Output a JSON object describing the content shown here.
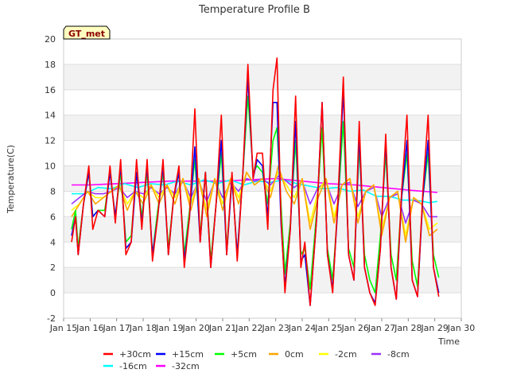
{
  "chart_data": {
    "type": "line",
    "title": "Temperature Profile B",
    "xlabel": "Time",
    "ylabel": "Temperature(C)",
    "xlim": [
      "Jan 15",
      "Jan 30"
    ],
    "ylim": [
      -2,
      20
    ],
    "yticks": [
      -2,
      0,
      2,
      4,
      6,
      8,
      10,
      12,
      14,
      16,
      18,
      20
    ],
    "xtick_labels": [
      "Jan 15",
      "Jan 16",
      "Jan 17",
      "Jan 18",
      "Jan 19",
      "Jan 20",
      "Jan 21",
      "Jan 22",
      "Jan 23",
      "Jan 24",
      "Jan 25",
      "Jan 26",
      "Jan 27",
      "Jan 28",
      "Jan 29",
      "Jan 30"
    ],
    "grid": "horizontal bands",
    "legend_position": "bottom",
    "annotation": "GT_met",
    "series": [
      {
        "name": "+30cm",
        "color": "#ff0000",
        "x": [
          15.3,
          15.45,
          15.55,
          15.75,
          15.95,
          16.1,
          16.3,
          16.55,
          16.75,
          16.95,
          17.15,
          17.35,
          17.55,
          17.75,
          17.95,
          18.15,
          18.35,
          18.55,
          18.75,
          18.95,
          19.15,
          19.35,
          19.55,
          19.75,
          19.95,
          20.15,
          20.35,
          20.55,
          20.75,
          20.95,
          21.15,
          21.35,
          21.55,
          21.75,
          21.95,
          22.15,
          22.3,
          22.5,
          22.7,
          22.9,
          23.05,
          23.2,
          23.35,
          23.55,
          23.75,
          23.95,
          24.1,
          24.3,
          24.55,
          24.75,
          24.95,
          25.15,
          25.35,
          25.55,
          25.75,
          25.95,
          26.15,
          26.35,
          26.55,
          26.75,
          26.95,
          27.15,
          27.35,
          27.55,
          27.75,
          27.95,
          28.15,
          28.35,
          28.55,
          28.75,
          28.95,
          29.15
        ],
        "y": [
          4.0,
          6.0,
          3.0,
          7.0,
          10.0,
          5.0,
          6.5,
          6.0,
          10.0,
          5.5,
          10.5,
          3.0,
          4.0,
          10.5,
          5.0,
          10.5,
          2.5,
          6.0,
          10.5,
          3.0,
          7.5,
          10.0,
          2.0,
          6.0,
          14.5,
          4.0,
          9.5,
          2.0,
          7.0,
          14.0,
          3.0,
          9.5,
          2.5,
          9.0,
          18.0,
          9.0,
          11.0,
          11.0,
          5.0,
          16.0,
          18.5,
          6.0,
          0.0,
          5.0,
          15.5,
          2.0,
          4.0,
          -1.0,
          6.0,
          15.0,
          3.0,
          0.0,
          7.5,
          17.0,
          3.0,
          1.0,
          13.5,
          2.0,
          0.0,
          -1.0,
          3.5,
          12.5,
          2.0,
          -0.5,
          8.0,
          14.0,
          1.0,
          -0.3,
          8.0,
          14.0,
          2.0,
          -0.3
        ]
      },
      {
        "name": "+15cm",
        "color": "#0000ff",
        "x": [
          15.3,
          15.45,
          15.55,
          15.75,
          15.95,
          16.1,
          16.3,
          16.55,
          16.75,
          16.95,
          17.15,
          17.35,
          17.55,
          17.75,
          17.95,
          18.15,
          18.35,
          18.55,
          18.75,
          18.95,
          19.15,
          19.35,
          19.55,
          19.75,
          19.95,
          20.15,
          20.35,
          20.55,
          20.75,
          20.95,
          21.15,
          21.35,
          21.55,
          21.75,
          21.95,
          22.15,
          22.3,
          22.5,
          22.7,
          22.9,
          23.05,
          23.2,
          23.35,
          23.55,
          23.75,
          23.95,
          24.1,
          24.3,
          24.55,
          24.75,
          24.95,
          25.15,
          25.35,
          25.55,
          25.75,
          25.95,
          26.15,
          26.35,
          26.55,
          26.75,
          26.95,
          27.15,
          27.35,
          27.55,
          27.75,
          27.95,
          28.15,
          28.35,
          28.55,
          28.75,
          28.95,
          29.15
        ],
        "y": [
          4.5,
          6.0,
          3.0,
          7.0,
          9.5,
          6.0,
          6.5,
          6.0,
          9.5,
          6.0,
          10.0,
          3.5,
          4.0,
          9.5,
          5.5,
          10.0,
          3.0,
          6.0,
          10.0,
          3.0,
          7.5,
          9.5,
          2.5,
          6.0,
          11.5,
          4.0,
          9.5,
          2.0,
          7.0,
          12.0,
          3.0,
          9.0,
          3.0,
          9.0,
          17.0,
          9.0,
          10.5,
          10.0,
          6.0,
          15.0,
          15.0,
          5.5,
          0.5,
          5.0,
          13.5,
          2.5,
          3.0,
          -1.0,
          6.0,
          15.0,
          3.0,
          0.3,
          7.0,
          16.0,
          3.0,
          1.0,
          12.5,
          2.0,
          0.0,
          -0.8,
          3.5,
          12.0,
          2.0,
          -0.5,
          7.5,
          12.0,
          1.0,
          -0.3,
          7.5,
          12.0,
          2.0,
          0.0
        ]
      },
      {
        "name": "+5cm",
        "color": "#00ff00",
        "x": [
          15.3,
          15.45,
          15.55,
          15.75,
          15.95,
          16.1,
          16.3,
          16.55,
          16.75,
          16.95,
          17.15,
          17.35,
          17.55,
          17.75,
          17.95,
          18.15,
          18.35,
          18.55,
          18.75,
          18.95,
          19.15,
          19.35,
          19.55,
          19.75,
          19.95,
          20.15,
          20.35,
          20.55,
          20.75,
          20.95,
          21.15,
          21.35,
          21.55,
          21.75,
          21.95,
          22.15,
          22.3,
          22.5,
          22.7,
          22.9,
          23.05,
          23.2,
          23.35,
          23.55,
          23.75,
          23.95,
          24.1,
          24.3,
          24.55,
          24.75,
          24.95,
          25.15,
          25.35,
          25.55,
          25.75,
          25.95,
          26.15,
          26.35,
          26.55,
          26.75,
          26.95,
          27.15,
          27.35,
          27.55,
          27.75,
          27.95,
          28.15,
          28.35,
          28.55,
          28.75,
          28.95,
          29.15
        ],
        "y": [
          5.0,
          6.5,
          3.5,
          7.0,
          9.5,
          6.0,
          6.5,
          6.5,
          9.5,
          6.0,
          9.5,
          4.0,
          4.5,
          9.5,
          6.0,
          9.5,
          3.0,
          6.5,
          9.5,
          3.5,
          7.5,
          9.5,
          3.0,
          6.5,
          10.5,
          4.5,
          9.5,
          2.5,
          7.0,
          11.0,
          3.5,
          9.0,
          3.0,
          9.0,
          15.5,
          9.5,
          10.0,
          9.5,
          7.0,
          12.0,
          13.0,
          7.0,
          1.5,
          5.5,
          12.0,
          3.0,
          3.5,
          0.3,
          6.5,
          13.0,
          3.5,
          1.0,
          7.0,
          13.5,
          3.5,
          2.0,
          11.5,
          3.0,
          1.0,
          0.0,
          4.5,
          11.0,
          3.0,
          1.0,
          7.5,
          11.0,
          2.5,
          0.5,
          7.5,
          11.0,
          3.0,
          1.2
        ]
      },
      {
        "name": "0cm",
        "color": "#ffa500",
        "x": [
          15.3,
          15.6,
          15.9,
          16.2,
          16.5,
          16.8,
          17.1,
          17.4,
          17.7,
          18.0,
          18.3,
          18.6,
          18.9,
          19.2,
          19.5,
          19.8,
          20.1,
          20.4,
          20.7,
          21.0,
          21.3,
          21.6,
          21.9,
          22.2,
          22.5,
          22.8,
          23.1,
          23.4,
          23.7,
          24.0,
          24.3,
          24.6,
          24.9,
          25.2,
          25.5,
          25.8,
          26.1,
          26.4,
          26.7,
          27.0,
          27.3,
          27.6,
          27.9,
          28.2,
          28.5,
          28.8,
          29.1
        ],
        "y": [
          6.0,
          7.0,
          8.0,
          7.0,
          7.5,
          8.0,
          8.5,
          6.5,
          8.0,
          7.0,
          8.5,
          7.0,
          8.5,
          7.0,
          9.0,
          6.5,
          9.0,
          6.0,
          9.0,
          6.5,
          9.0,
          7.0,
          9.5,
          8.5,
          9.0,
          7.5,
          10.0,
          8.0,
          7.0,
          9.0,
          5.0,
          7.5,
          9.0,
          5.5,
          8.5,
          9.0,
          5.5,
          8.0,
          8.5,
          4.5,
          7.5,
          8.0,
          4.0,
          7.5,
          7.0,
          4.5,
          5.0
        ]
      },
      {
        "name": "-2cm",
        "color": "#ffff00",
        "x": [
          15.3,
          15.6,
          15.9,
          16.2,
          16.5,
          16.8,
          17.1,
          17.4,
          17.7,
          18.0,
          18.3,
          18.6,
          18.9,
          19.2,
          19.5,
          19.8,
          20.1,
          20.4,
          20.7,
          21.0,
          21.3,
          21.6,
          21.9,
          22.2,
          22.5,
          22.8,
          23.1,
          23.4,
          23.7,
          24.0,
          24.3,
          24.6,
          24.9,
          25.2,
          25.5,
          25.8,
          26.1,
          26.4,
          26.7,
          27.0,
          27.3,
          27.6,
          27.9,
          28.2,
          28.5,
          28.8,
          29.1
        ],
        "y": [
          6.5,
          7.0,
          8.0,
          7.5,
          7.5,
          8.0,
          8.5,
          7.0,
          8.0,
          7.5,
          8.5,
          7.5,
          8.5,
          7.5,
          9.0,
          7.0,
          9.0,
          6.5,
          9.0,
          7.0,
          9.0,
          7.5,
          9.5,
          8.5,
          9.0,
          8.0,
          9.5,
          8.5,
          7.5,
          9.0,
          5.5,
          8.0,
          9.0,
          6.0,
          8.5,
          9.0,
          6.0,
          8.0,
          8.5,
          5.0,
          7.5,
          8.0,
          4.5,
          7.5,
          7.0,
          5.0,
          5.5
        ]
      },
      {
        "name": "-8cm",
        "color": "#9b30ff",
        "x": [
          15.3,
          15.6,
          15.9,
          16.2,
          16.5,
          16.8,
          17.1,
          17.4,
          17.7,
          18.0,
          18.3,
          18.6,
          18.9,
          19.2,
          19.5,
          19.8,
          20.1,
          20.4,
          20.7,
          21.0,
          21.3,
          21.6,
          21.9,
          22.2,
          22.5,
          22.8,
          23.1,
          23.4,
          23.7,
          24.0,
          24.3,
          24.6,
          24.9,
          25.2,
          25.5,
          25.8,
          26.1,
          26.4,
          26.7,
          27.0,
          27.3,
          27.6,
          27.9,
          28.2,
          28.5,
          28.8,
          29.1
        ],
        "y": [
          7.0,
          7.5,
          8.0,
          7.8,
          7.8,
          8.0,
          8.3,
          7.5,
          8.0,
          7.8,
          8.3,
          7.8,
          8.3,
          7.8,
          8.8,
          7.5,
          8.8,
          7.2,
          8.8,
          7.5,
          8.7,
          8.0,
          9.0,
          8.8,
          9.0,
          8.5,
          9.2,
          8.8,
          8.3,
          8.8,
          7.0,
          8.3,
          8.7,
          7.0,
          8.5,
          8.7,
          6.8,
          8.0,
          8.3,
          6.0,
          7.5,
          7.8,
          5.5,
          7.3,
          7.0,
          6.0,
          6.0
        ]
      },
      {
        "name": "-16cm",
        "color": "#00ffff",
        "x": [
          15.3,
          15.8,
          16.3,
          16.8,
          17.3,
          17.8,
          18.3,
          18.8,
          19.3,
          19.8,
          20.3,
          20.8,
          21.3,
          21.8,
          22.3,
          22.8,
          23.3,
          23.8,
          24.3,
          24.8,
          25.3,
          25.8,
          26.3,
          26.8,
          27.3,
          27.8,
          28.3,
          28.8,
          29.1
        ],
        "y": [
          7.8,
          7.8,
          8.3,
          8.2,
          8.6,
          8.3,
          8.6,
          8.5,
          8.8,
          8.5,
          8.9,
          8.6,
          8.9,
          8.5,
          8.8,
          8.7,
          8.9,
          8.6,
          8.4,
          8.2,
          8.3,
          8.0,
          8.1,
          7.6,
          7.6,
          7.3,
          7.3,
          7.1,
          7.2
        ]
      },
      {
        "name": "-32cm",
        "color": "#ff00ff",
        "x": [
          15.3,
          16.0,
          17.0,
          18.0,
          19.0,
          20.0,
          21.0,
          22.0,
          23.0,
          24.0,
          25.0,
          26.0,
          27.0,
          28.0,
          29.1
        ],
        "y": [
          8.5,
          8.5,
          8.6,
          8.7,
          8.8,
          8.8,
          8.8,
          8.9,
          9.0,
          8.8,
          8.6,
          8.5,
          8.3,
          8.1,
          7.9
        ]
      }
    ]
  }
}
